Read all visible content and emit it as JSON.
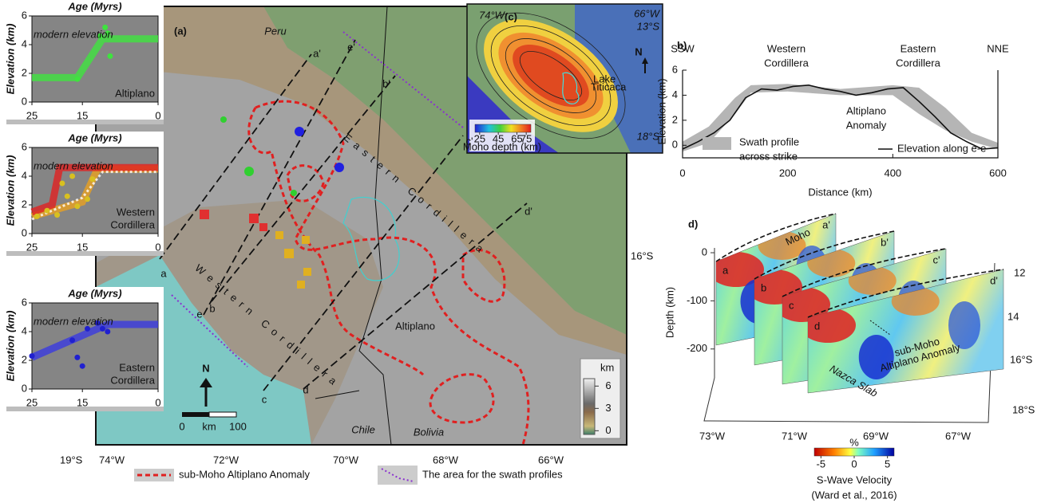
{
  "insets": [
    {
      "title": "Age (Myrs)",
      "ylabel": "Elevation (km)",
      "xlim": [
        25,
        0
      ],
      "ylim": [
        0,
        6
      ],
      "xticks": [
        25,
        15,
        0
      ],
      "yticks": [
        0,
        2,
        4,
        6
      ],
      "note": "modern elevation",
      "region": [
        "Altiplano"
      ],
      "trends": [
        {
          "color": "#3ee33e",
          "x": [
            25,
            16,
            11,
            0
          ],
          "y": [
            1.7,
            1.7,
            4.4,
            4.4
          ]
        }
      ],
      "points": {
        "color": "#3ee33e",
        "x": [
          16,
          11.5,
          10.5,
          10,
          9.5
        ],
        "y": [
          1.6,
          4.6,
          5.2,
          4.8,
          3.2
        ]
      }
    },
    {
      "title": "Age (Myrs)",
      "ylabel": "Elevation (km)",
      "xlim": [
        25,
        0
      ],
      "ylim": [
        0,
        6
      ],
      "xticks": [
        25,
        15,
        0
      ],
      "yticks": [
        0,
        2,
        4,
        6
      ],
      "note": "modern elevation",
      "region": [
        "Western",
        "Cordillera"
      ],
      "trends": [
        {
          "color": "#e8a020",
          "x": [
            25,
            15,
            12,
            0
          ],
          "y": [
            1.2,
            2.2,
            4.5,
            4.5
          ]
        },
        {
          "color": "#e02020",
          "x": [
            25,
            21,
            19.5,
            0
          ],
          "y": [
            1.5,
            2.0,
            4.6,
            4.6
          ]
        },
        {
          "color": "#ffffff",
          "x": [
            25,
            15,
            11,
            0
          ],
          "y": [
            1.0,
            2.5,
            4.3,
            4.3
          ]
        }
      ],
      "points": {
        "color": "#d8c020",
        "x": [
          24,
          22,
          20,
          18,
          16,
          14,
          13,
          19,
          17
        ],
        "y": [
          1.2,
          1.6,
          1.3,
          2.6,
          1.9,
          2.4,
          3.8,
          3.5,
          4.0
        ]
      }
    },
    {
      "title": "Age (Myrs)",
      "ylabel": "Elevation (km)",
      "xlim": [
        25,
        0
      ],
      "ylim": [
        0,
        6
      ],
      "xticks": [
        25,
        15,
        0
      ],
      "yticks": [
        0,
        2,
        4,
        6
      ],
      "note": "modern elevation",
      "region": [
        "Eastern",
        "Cordillera"
      ],
      "trends": [
        {
          "color": "#3a3ae0",
          "x": [
            25,
            10,
            0
          ],
          "y": [
            2.2,
            4.5,
            4.5
          ]
        }
      ],
      "points": {
        "color": "#2020d0",
        "x": [
          25,
          17,
          16,
          15,
          14,
          12,
          11,
          10
        ],
        "y": [
          2.3,
          3.4,
          2.2,
          1.6,
          4.2,
          4.6,
          4.2,
          4.0
        ]
      }
    }
  ],
  "map": {
    "label": "(a)",
    "countries": [
      "Peru",
      "Chile",
      "Bolivia"
    ],
    "region": "Altiplano",
    "ranges": [
      "Western Cordillera",
      "Eastern Cordillera"
    ],
    "profiles": [
      {
        "start": "a",
        "end": "a'"
      },
      {
        "start": "b",
        "end": "b'"
      },
      {
        "start": "c",
        "end": "c'"
      },
      {
        "start": "d",
        "end": "d'"
      },
      {
        "start": "e",
        "end": "e'"
      }
    ],
    "lon_labels": [
      "74°W",
      "72°W",
      "70°W",
      "68°W",
      "66°W"
    ],
    "lat_labels": [
      "16°S",
      "19°S"
    ],
    "north": "N",
    "scale": {
      "start": 0,
      "unit": "km",
      "end": 100
    },
    "elevation_legend": {
      "unit": "km",
      "lim": [
        -0.5,
        7
      ],
      "ticks": [
        6,
        3,
        0
      ]
    }
  },
  "inset_c": {
    "label": "(c)",
    "corner_labels": [
      "74°W",
      "66°W",
      "13°S",
      "18°S"
    ],
    "north": "N",
    "lake": [
      "Lake",
      "Titicaca"
    ],
    "colorbar": {
      "lim": [
        20,
        80
      ],
      "ticks": [
        25,
        45,
        65,
        75
      ],
      "title": "Moho depth (km)"
    }
  },
  "profile_b": {
    "label": "b)",
    "ends": [
      "SSW",
      "NNE"
    ],
    "ranges": [
      [
        "Western",
        "Cordillera"
      ],
      [
        "Eastern",
        "Cordillera"
      ]
    ],
    "anomaly": [
      "Altiplano",
      "Anomaly"
    ],
    "xlabel": "Distance (km)",
    "ylabel": "Elevation (km)",
    "xlim": [
      0,
      600
    ],
    "ylim": [
      -1,
      6
    ],
    "xticks": [
      0,
      200,
      400,
      600
    ],
    "yticks": [
      0,
      2,
      4,
      6
    ],
    "swath_legend": [
      "Swath profile",
      "across strike"
    ],
    "line_legend": "Elevation along e-e",
    "elevation": {
      "x": [
        0,
        30,
        60,
        90,
        120,
        150,
        180,
        210,
        240,
        270,
        300,
        330,
        360,
        390,
        420,
        450,
        480,
        510,
        540,
        570,
        600
      ],
      "y": [
        -0.3,
        0.3,
        1.0,
        2.0,
        3.8,
        4.5,
        4.4,
        4.7,
        4.8,
        4.5,
        4.3,
        4.0,
        4.2,
        4.5,
        4.6,
        3.5,
        2.3,
        1.0,
        0.3,
        -0.3,
        -0.2
      ]
    },
    "swath": {
      "x": [
        0,
        50,
        100,
        130,
        200,
        300,
        400,
        450,
        500,
        550,
        600
      ],
      "low": [
        -0.5,
        0.2,
        2.5,
        4.2,
        4.3,
        4.0,
        4.0,
        2.5,
        1.2,
        0.3,
        -0.3
      ],
      "high": [
        0.3,
        1.5,
        3.8,
        4.8,
        4.9,
        4.5,
        4.8,
        4.6,
        3.0,
        1.0,
        0.2
      ]
    }
  },
  "section_d": {
    "label": "d)",
    "ylabel": "Depth (km)",
    "ylim": [
      -260,
      10
    ],
    "yticks": [
      0,
      -100,
      -200
    ],
    "lon_labels": [
      "73°W",
      "71°W",
      "69°W",
      "67°W"
    ],
    "lat_labels": [
      "12",
      "14",
      "16°S",
      "18°S"
    ],
    "slices": [
      "a",
      "b",
      "c",
      "d"
    ],
    "slice_ends": [
      "a'",
      "b'",
      "c'",
      "d'"
    ],
    "moho": "Moho",
    "anomaly": [
      "sub-Moho",
      "Altiplano Anomaly"
    ],
    "slab": "Nazca Slab",
    "colorbar": {
      "unit": "%",
      "lim": [
        -6,
        6
      ],
      "ticks": [
        -5,
        0,
        5
      ],
      "title": "S-Wave Velocity",
      "source": "(Ward et al., 2016)"
    }
  },
  "legend": [
    "sub-Moho Altiplano Anomaly",
    "The area for the swath profiles"
  ]
}
